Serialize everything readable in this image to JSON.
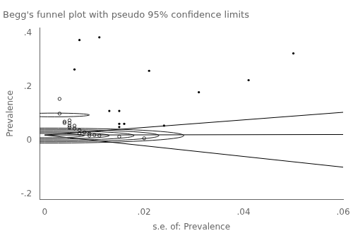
{
  "chart_data": {
    "type": "scatter",
    "title": "Begg's funnel plot with pseudo 95% confidence limits",
    "xlabel": "s.e. of: Prevalence",
    "ylabel": "Prevalence",
    "xlim": [
      -0.001,
      0.06
    ],
    "ylim": [
      -0.22,
      0.42
    ],
    "xticks": [
      0,
      {
        "value": 0.02,
        "label": ".02"
      },
      {
        "value": 0.04,
        "label": ".04"
      },
      {
        "value": 0.06,
        "label": ".06"
      }
    ],
    "yticks": [
      {
        "value": -0.2,
        "label": "-.2"
      },
      0,
      {
        "value": 0.2,
        "label": ".2"
      },
      {
        "value": 0.4,
        "label": ".4"
      }
    ],
    "grid": false,
    "series": [
      {
        "type": "line",
        "color": "#000000",
        "x": [
          0.0,
          0.06
        ],
        "values": [
          0.02,
          0.105
        ]
      },
      {
        "type": "line",
        "color": "#000000",
        "x": [
          0.0,
          0.06
        ],
        "values": [
          0.02,
          0.022
        ]
      },
      {
        "type": "line",
        "color": "#000000",
        "x": [
          0.0,
          0.06
        ],
        "values": [
          0.02,
          -0.1
        ]
      },
      {
        "type": "scatter",
        "marker": "dot",
        "color": "#000000",
        "x": [
          0.007,
          0.011,
          0.006,
          0.021,
          0.031,
          0.041,
          0.05,
          0.013,
          0.015,
          0.015,
          0.016,
          0.024,
          0.015
        ],
        "values": [
          0.375,
          0.385,
          0.265,
          0.26,
          0.18,
          0.225,
          0.325,
          0.11,
          0.11,
          0.062,
          0.062,
          0.055,
          0.05
        ]
      },
      {
        "type": "scatter",
        "marker": "open_circle",
        "color": "#000000",
        "x": [
          0.003,
          0.003,
          0.004,
          0.004,
          0.005,
          0.005,
          0.005,
          0.005,
          0.006,
          0.006,
          0.007,
          0.007,
          0.008,
          0.009,
          0.009,
          0.01,
          0.011,
          0.015,
          0.02
        ],
        "values": [
          0.155,
          0.1,
          0.07,
          0.065,
          0.075,
          0.065,
          0.055,
          0.048,
          0.055,
          0.045,
          0.038,
          0.025,
          0.03,
          0.025,
          0.018,
          0.02,
          0.018,
          0.014,
          0.008
        ]
      },
      {
        "type": "circle",
        "color": "#000000",
        "x": [
          0.002
        ],
        "values": [
          0.095
        ],
        "radius": [
          0.007
        ]
      },
      {
        "type": "circle",
        "color": "#000000",
        "x": [
          0.0,
          0.0,
          0.0,
          0.0,
          0.0
        ],
        "values": [
          0.018,
          0.018,
          0.018,
          0.018,
          0.018
        ],
        "radius": [
          0.008,
          0.013,
          0.018,
          0.023,
          0.028
        ]
      }
    ]
  }
}
